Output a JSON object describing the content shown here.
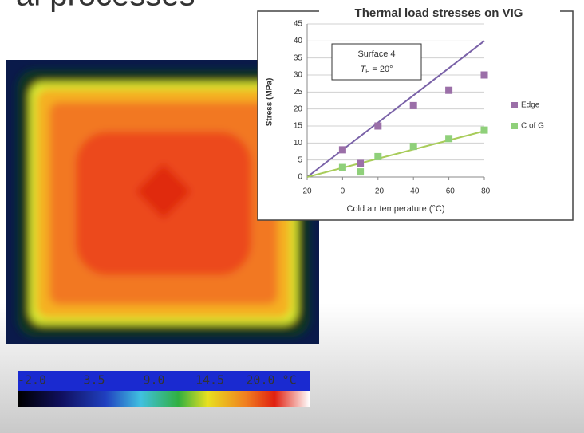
{
  "slide": {
    "title": "al processes"
  },
  "color_scale": {
    "labels": [
      "-2.0",
      "3.5",
      "9.0",
      "14.5",
      "20.0 °C"
    ]
  },
  "chart_data": {
    "type": "scatter",
    "title": "Thermal load stresses on VIG",
    "x_label": "Cold air temperature (°C)",
    "y_label": "Stress (MPa)",
    "annotation": {
      "line1": "Surface 4",
      "symbol": "T",
      "subscript": "H",
      "rest": " = 20°"
    },
    "xlim": [
      20,
      -80
    ],
    "xticks": [
      20,
      0,
      -20,
      -40,
      -60,
      -80
    ],
    "ylim": [
      0,
      45
    ],
    "yticks": [
      0,
      5,
      10,
      15,
      20,
      25,
      30,
      35,
      40,
      45
    ],
    "series": [
      {
        "name": "Edge",
        "color": "#9b6fa8",
        "x": [
          -10,
          0,
          -20,
          -40,
          -60,
          -80
        ],
        "values": [
          4,
          8,
          15,
          21,
          25.5,
          30
        ]
      },
      {
        "name": "C of G",
        "color": "#8fd07a",
        "x": [
          -10,
          0,
          -20,
          -40,
          -60,
          -80
        ],
        "values": [
          1.5,
          2.8,
          6,
          9,
          11.3,
          13.8
        ]
      }
    ],
    "trend_lines": [
      {
        "color": "#7a62a8",
        "x": [
          20,
          -80
        ],
        "values": [
          0,
          40
        ]
      },
      {
        "color": "#a8cc5a",
        "x": [
          20,
          -80
        ],
        "values": [
          0,
          13.5
        ]
      }
    ]
  }
}
